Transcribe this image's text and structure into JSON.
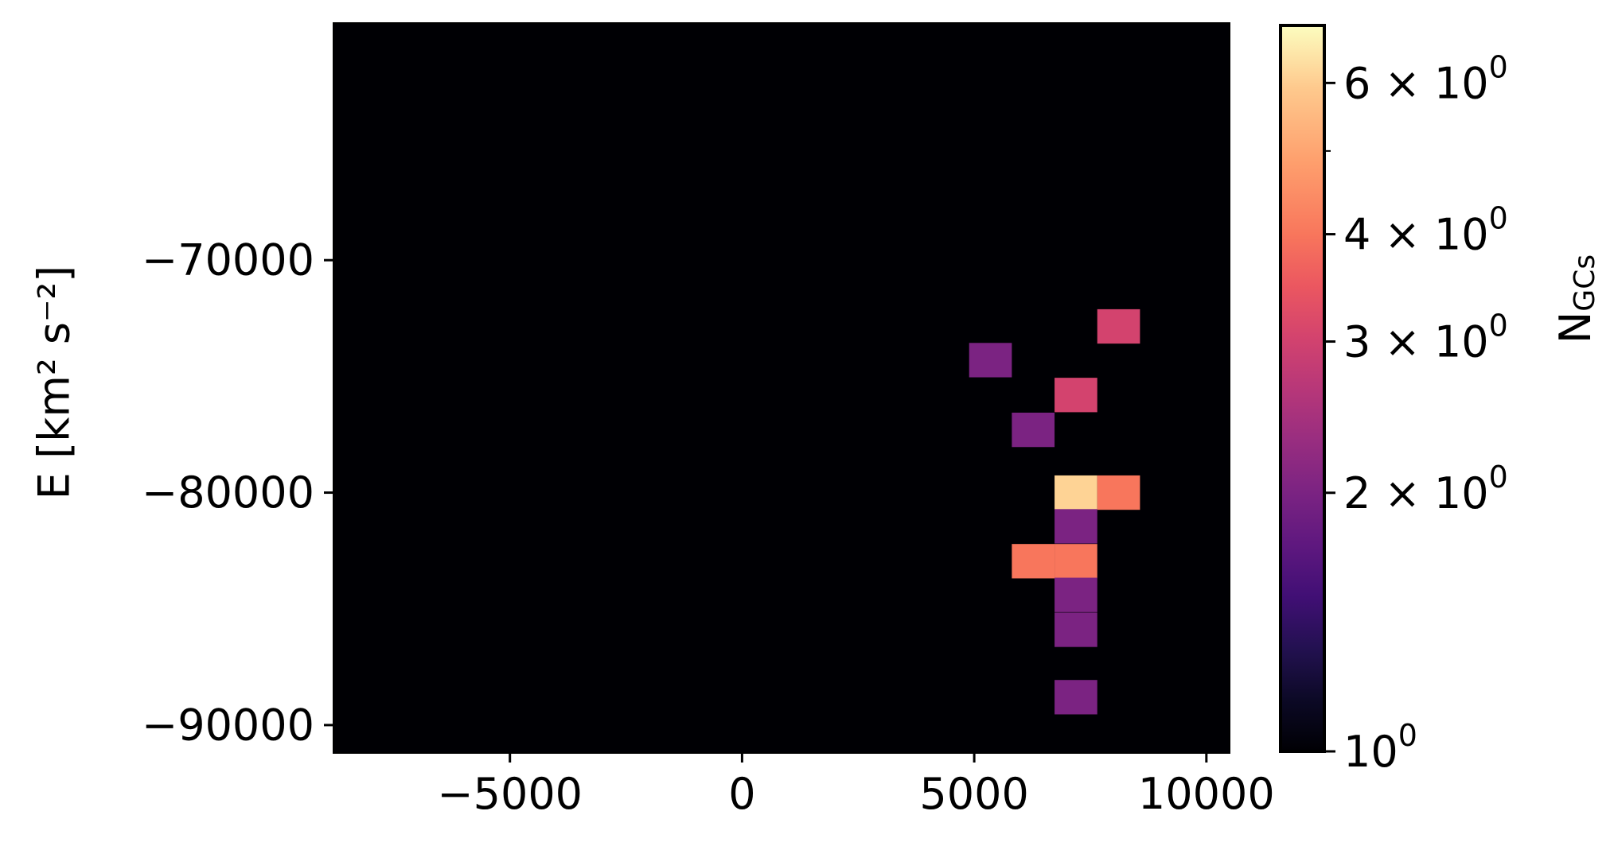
{
  "chart_data": {
    "type": "heatmap",
    "title": "",
    "xlabel": "",
    "ylabel": "E [km² s⁻²]",
    "xlim": [
      -8800,
      10500
    ],
    "ylim": [
      -91200,
      -59800
    ],
    "x_ticks": [
      {
        "value": -5000,
        "label": "−5000"
      },
      {
        "value": 0,
        "label": "0"
      },
      {
        "value": 5000,
        "label": "5000"
      },
      {
        "value": 10000,
        "label": "10000"
      }
    ],
    "y_ticks": [
      {
        "value": -70000,
        "label": "−70000"
      },
      {
        "value": -80000,
        "label": "−80000"
      },
      {
        "value": -90000,
        "label": "−90000"
      }
    ],
    "background_color": "#000004",
    "bin_width_x": 920,
    "bin_height_y": 1480,
    "cells": [
      {
        "x0": 8570,
        "y": -72850,
        "count": 3
      },
      {
        "x0": 5810,
        "y": -74300,
        "count": 2
      },
      {
        "x0": 7650,
        "y": -75800,
        "count": 3
      },
      {
        "x0": 6730,
        "y": -77300,
        "count": 2
      },
      {
        "x0": 7650,
        "y": -80000,
        "count": 6
      },
      {
        "x0": 8570,
        "y": -80000,
        "count": 4
      },
      {
        "x0": 7650,
        "y": -81450,
        "count": 2
      },
      {
        "x0": 6730,
        "y": -82950,
        "count": 4
      },
      {
        "x0": 7650,
        "y": -82950,
        "count": 4
      },
      {
        "x0": 7650,
        "y": -84400,
        "count": 2
      },
      {
        "x0": 7650,
        "y": -85900,
        "count": 2
      },
      {
        "x0": 7650,
        "y": -88800,
        "count": 2
      }
    ],
    "colorbar": {
      "label": "N",
      "label_sub": "GCs",
      "scale": "log",
      "range": [
        1,
        7
      ],
      "colormap": "magma",
      "major_ticks": [
        {
          "value": 1,
          "mant": "",
          "base": "10",
          "exp": "0"
        },
        {
          "value": 2,
          "mant": "2 × ",
          "base": "10",
          "exp": "0"
        },
        {
          "value": 3,
          "mant": "3 × ",
          "base": "10",
          "exp": "0"
        },
        {
          "value": 4,
          "mant": "4 × ",
          "base": "10",
          "exp": "0"
        },
        {
          "value": 6,
          "mant": "6 × ",
          "base": "10",
          "exp": "0"
        }
      ],
      "minor_ticks": [
        5
      ]
    },
    "cell_colors": {
      "2": "#7b2382",
      "3": "#d3436e",
      "4": "#f8765c",
      "6": "#fed395"
    }
  }
}
